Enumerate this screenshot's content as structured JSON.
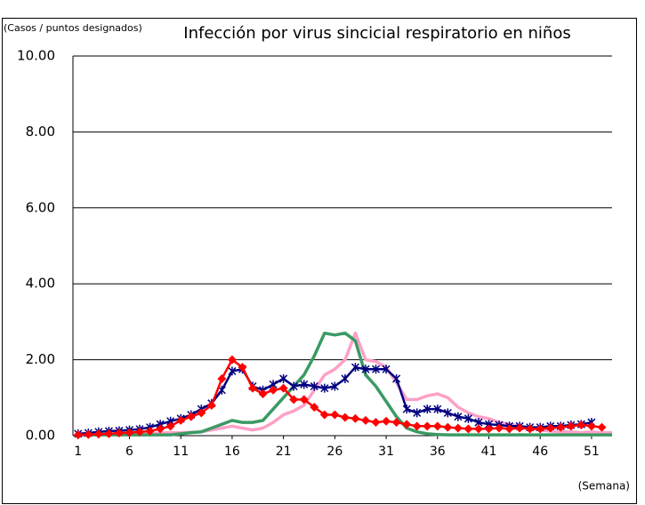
{
  "chart_data": {
    "type": "line",
    "title": "Infección por virus sincicial respiratorio en niños",
    "y_label": "(Casos / puntos designados)",
    "x_label": "(Semana)",
    "x": [
      1,
      2,
      3,
      4,
      5,
      6,
      7,
      8,
      9,
      10,
      11,
      12,
      13,
      14,
      15,
      16,
      17,
      18,
      19,
      20,
      21,
      22,
      23,
      24,
      25,
      26,
      27,
      28,
      29,
      30,
      31,
      32,
      33,
      34,
      35,
      36,
      37,
      38,
      39,
      40,
      41,
      42,
      43,
      44,
      45,
      46,
      47,
      48,
      49,
      50,
      51,
      52,
      53
    ],
    "xlim": [
      0.5,
      53
    ],
    "xticks": [
      1,
      6,
      11,
      16,
      21,
      26,
      31,
      36,
      41,
      46,
      51
    ],
    "ylim": [
      0,
      10
    ],
    "yticks": [
      {
        "value": 0,
        "label": "0.00"
      },
      {
        "value": 2,
        "label": "2.00"
      },
      {
        "value": 4,
        "label": "4.00"
      },
      {
        "value": 6,
        "label": "6.00"
      },
      {
        "value": 8,
        "label": "8.00"
      },
      {
        "value": 10,
        "label": "10.00"
      }
    ],
    "grid": true,
    "series": [
      {
        "color": "#ffa0c8",
        "marker": "none",
        "values": [
          0.02,
          0.02,
          0.03,
          0.03,
          0.04,
          0.05,
          0.05,
          0.06,
          0.07,
          0.08,
          0.08,
          0.09,
          0.1,
          0.15,
          0.2,
          0.25,
          0.2,
          0.15,
          0.2,
          0.35,
          0.55,
          0.65,
          0.8,
          1.2,
          1.6,
          1.75,
          2.0,
          2.7,
          2.0,
          1.95,
          1.8,
          1.4,
          0.95,
          0.95,
          1.05,
          1.1,
          1.0,
          0.75,
          0.6,
          0.5,
          0.45,
          0.35,
          0.3,
          0.25,
          0.2,
          0.15,
          0.12,
          0.1,
          0.1,
          0.08,
          0.1,
          0.08,
          0.08
        ]
      },
      {
        "color": "#3a9a64",
        "marker": "none",
        "values": [
          0.02,
          0.02,
          0.02,
          0.02,
          0.02,
          0.02,
          0.02,
          0.02,
          0.02,
          0.02,
          0.05,
          0.08,
          0.1,
          0.2,
          0.3,
          0.4,
          0.35,
          0.35,
          0.4,
          0.7,
          1.0,
          1.3,
          1.6,
          2.1,
          2.7,
          2.65,
          2.7,
          2.5,
          1.6,
          1.3,
          0.9,
          0.5,
          0.2,
          0.1,
          0.05,
          0.03,
          0.02,
          0.02,
          0.02,
          0.02,
          0.02,
          0.02,
          0.02,
          0.02,
          0.02,
          0.02,
          0.02,
          0.02,
          0.02,
          0.02,
          0.02,
          0.02,
          0.02
        ]
      },
      {
        "color": "#000080",
        "marker": "cross",
        "values": [
          0.05,
          0.07,
          0.1,
          0.12,
          0.13,
          0.15,
          0.17,
          0.22,
          0.3,
          0.38,
          0.45,
          0.55,
          0.7,
          0.85,
          1.2,
          1.7,
          1.75,
          1.3,
          1.2,
          1.35,
          1.5,
          1.3,
          1.35,
          1.3,
          1.25,
          1.3,
          1.5,
          1.8,
          1.75,
          1.75,
          1.75,
          1.5,
          0.7,
          0.6,
          0.7,
          0.7,
          0.6,
          0.5,
          0.45,
          0.35,
          0.3,
          0.28,
          0.25,
          0.25,
          0.22,
          0.22,
          0.25,
          0.25,
          0.28,
          0.3,
          0.35,
          null,
          null
        ]
      },
      {
        "color": "#ff0000",
        "marker": "diamond",
        "values": [
          0.02,
          0.03,
          0.04,
          0.05,
          0.07,
          0.08,
          0.1,
          0.12,
          0.18,
          0.25,
          0.4,
          0.5,
          0.6,
          0.8,
          1.5,
          2.0,
          1.8,
          1.25,
          1.1,
          1.2,
          1.25,
          0.95,
          0.95,
          0.75,
          0.55,
          0.55,
          0.48,
          0.45,
          0.4,
          0.35,
          0.38,
          0.35,
          0.3,
          0.25,
          0.25,
          0.25,
          0.22,
          0.2,
          0.18,
          0.18,
          0.18,
          0.2,
          0.18,
          0.2,
          0.18,
          0.18,
          0.2,
          0.22,
          0.25,
          0.28,
          0.25,
          0.22,
          null
        ]
      }
    ]
  }
}
